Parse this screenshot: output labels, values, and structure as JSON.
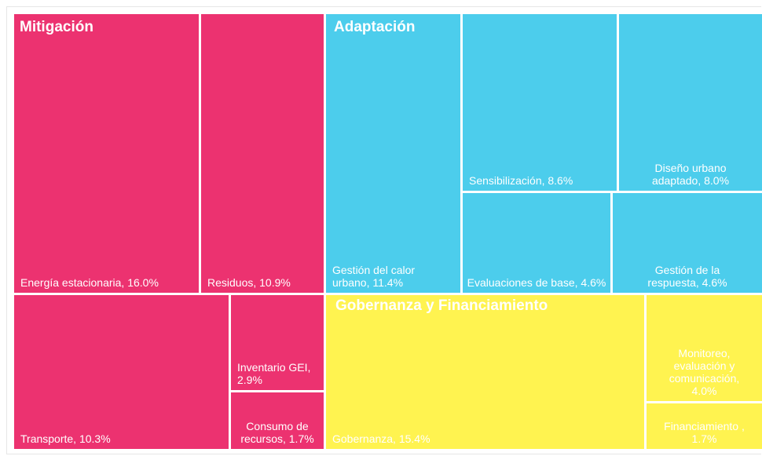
{
  "chart_data": {
    "type": "treemap",
    "groups": [
      {
        "name": "Mitigación",
        "color": "#ec3270",
        "labels": [
          "Energía estacionaria, 16.0%",
          "Residuos, 10.9%",
          "Transporte, 10.3%",
          "Inventario GEI, 2.9%",
          "Consumo de recursos, 1.7%"
        ],
        "values": [
          16.0,
          10.9,
          10.3,
          2.9,
          1.7
        ]
      },
      {
        "name": "Adaptación",
        "color": "#4ccdec",
        "labels": [
          "Gestión del calor urbano, 11.4%",
          "Sensibilización, 8.6%",
          "Diseño urbano adaptado, 8.0%",
          "Evaluaciones de base, 4.6%",
          "Gestión de la respuesta, 4.6%"
        ],
        "values": [
          11.4,
          8.6,
          8.0,
          4.6,
          4.6
        ]
      },
      {
        "name": "Gobernanza y Financiamiento",
        "color": "#fff350",
        "labels": [
          "Gobernanza, 15.4%",
          "Monitoreo, evaluación y comunicación, 4.0%",
          "Financiamiento , 1.7%"
        ],
        "values": [
          15.4,
          4.0,
          1.7
        ]
      }
    ]
  }
}
